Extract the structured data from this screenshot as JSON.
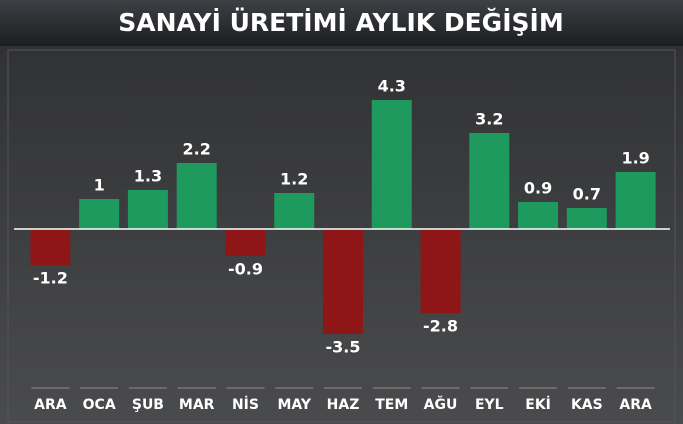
{
  "chart_data": {
    "type": "bar",
    "title": "SANAYİ ÜRETİMİ AYLIK DEĞİŞİM",
    "categories": [
      "ARA",
      "OCA",
      "ŞUB",
      "MAR",
      "NİS",
      "MAY",
      "HAZ",
      "TEM",
      "AĞU",
      "EYL",
      "EKİ",
      "KAS",
      "ARA"
    ],
    "values": [
      -1.2,
      1,
      1.3,
      2.2,
      -0.9,
      1.2,
      -3.5,
      4.3,
      -2.8,
      3.2,
      0.9,
      0.7,
      1.9
    ],
    "positive_color": "#1e9a5f",
    "negative_color": "#8e1616"
  }
}
